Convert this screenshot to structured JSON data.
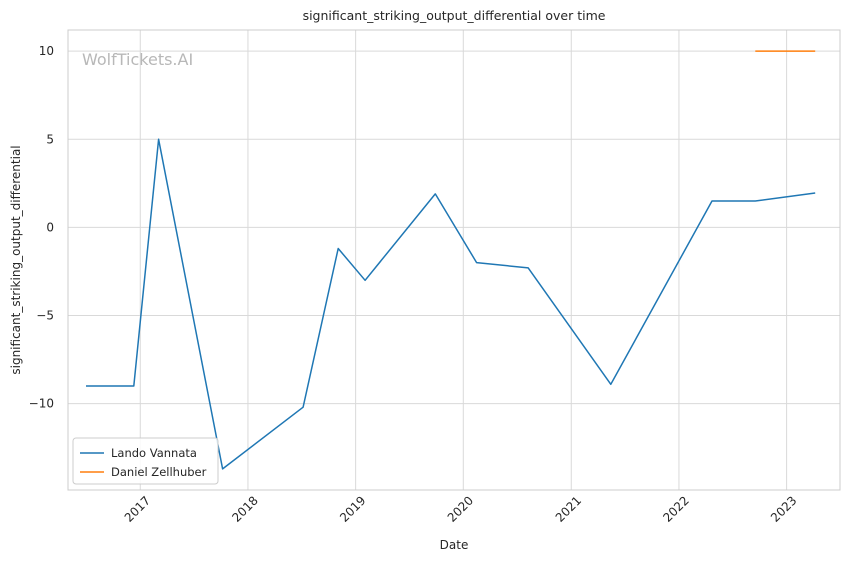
{
  "chart_data": {
    "type": "line",
    "title": "significant_striking_output_differential over time",
    "xlabel": "Date",
    "ylabel": "significant_striking_output_differential",
    "watermark": "WolfTickets.AI",
    "x_ticks": [
      "2017",
      "2018",
      "2019",
      "2020",
      "2021",
      "2022",
      "2023"
    ],
    "y_ticks": [
      -10,
      -5,
      0,
      5,
      10
    ],
    "xlim": [
      "2016-05-01",
      "2023-07-01"
    ],
    "ylim": [
      -14.9,
      11.2
    ],
    "grid": true,
    "legend_position": "lower-left",
    "series": [
      {
        "name": "Lando Vannata",
        "color": "#1f77b4",
        "points": [
          {
            "x": "2016-07-01",
            "y": -9.0
          },
          {
            "x": "2016-12-10",
            "y": -9.0
          },
          {
            "x": "2017-03-04",
            "y": 5.0
          },
          {
            "x": "2017-10-07",
            "y": -13.7
          },
          {
            "x": "2018-07-07",
            "y": -10.2
          },
          {
            "x": "2018-11-03",
            "y": -1.2
          },
          {
            "x": "2019-02-02",
            "y": -3.0
          },
          {
            "x": "2019-09-28",
            "y": 1.9
          },
          {
            "x": "2020-02-15",
            "y": -2.0
          },
          {
            "x": "2020-08-08",
            "y": -2.3
          },
          {
            "x": "2021-05-15",
            "y": -8.9
          },
          {
            "x": "2022-04-23",
            "y": 1.5
          },
          {
            "x": "2022-09-17",
            "y": 1.5
          },
          {
            "x": "2023-04-08",
            "y": 1.95
          }
        ]
      },
      {
        "name": "Daniel Zellhuber",
        "color": "#ff7f0e",
        "points": [
          {
            "x": "2022-09-17",
            "y": 10.0
          },
          {
            "x": "2023-04-08",
            "y": 10.0
          }
        ]
      }
    ]
  }
}
